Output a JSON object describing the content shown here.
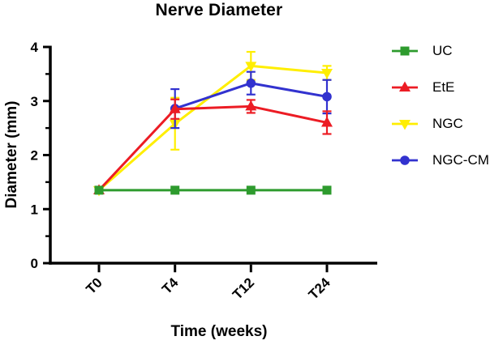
{
  "chart_data": {
    "type": "line",
    "title": "Nerve Diameter",
    "xlabel": "Time (weeks)",
    "ylabel": "Diameter (mm)",
    "categories": [
      "T0",
      "T4",
      "T12",
      "T24"
    ],
    "ylim": [
      0,
      4
    ],
    "y_major_ticks": [
      0,
      1,
      2,
      3,
      4
    ],
    "y_minor_ticks": [
      0.5,
      1.5,
      2.5,
      3.5
    ],
    "grid": false,
    "legend_position": "right",
    "axis_color": "#000000",
    "series": [
      {
        "name": "UC",
        "color": "#2E9B2E",
        "marker": "square",
        "values": [
          1.35,
          1.35,
          1.35,
          1.35
        ],
        "errors": [
          0,
          0,
          0,
          0
        ]
      },
      {
        "name": "EtE",
        "color": "#EC1C24",
        "marker": "triangle-up",
        "values": [
          1.35,
          2.85,
          2.9,
          2.6
        ],
        "errors": [
          0,
          0.18,
          0.12,
          0.21
        ]
      },
      {
        "name": "NGC",
        "color": "#FFEE00",
        "marker": "triangle-down",
        "values": [
          1.35,
          2.58,
          3.65,
          3.52
        ],
        "errors": [
          0,
          0.48,
          0.26,
          0.13
        ]
      },
      {
        "name": "NGC-CM",
        "color": "#3232CF",
        "marker": "circle",
        "values": [
          null,
          2.86,
          3.33,
          3.08
        ],
        "errors": [
          null,
          0.36,
          0.21,
          0.31
        ]
      }
    ]
  }
}
